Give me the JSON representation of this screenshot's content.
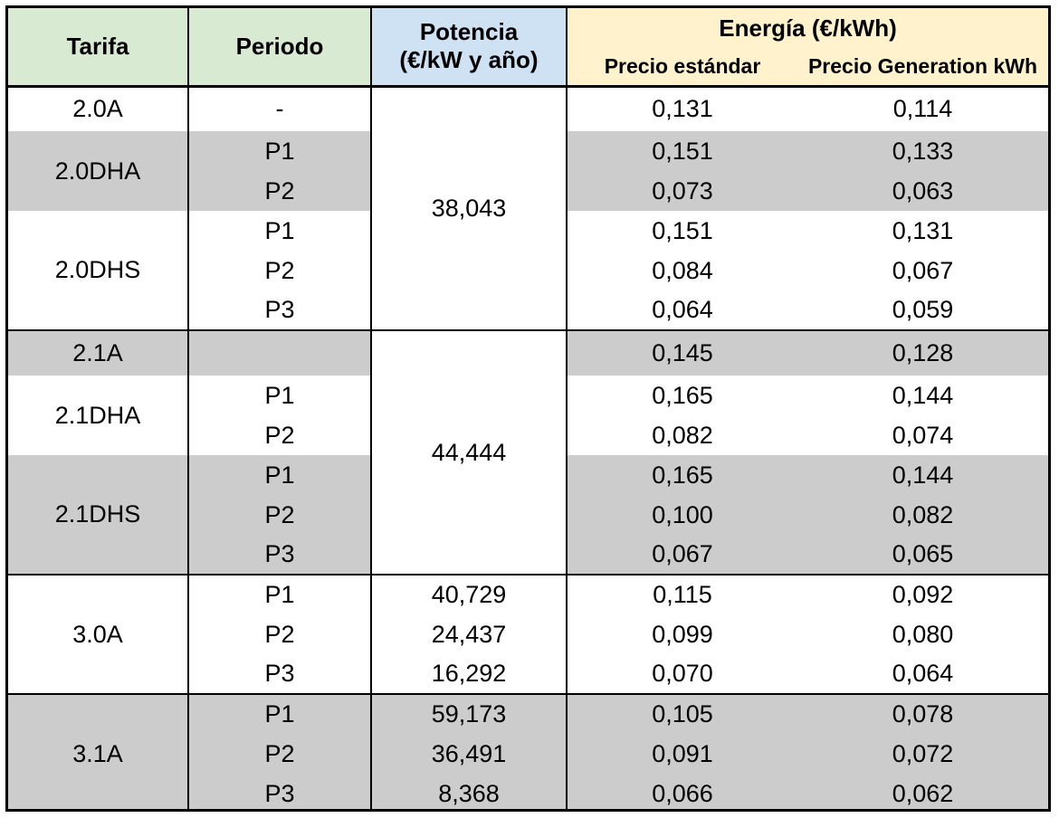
{
  "header": {
    "tarifa": "Tarifa",
    "periodo": "Periodo",
    "potencia_line1": "Potencia",
    "potencia_line2": "(€/kW y año)",
    "energia": "Energía (€/kWh)",
    "precio_estandar": "Precio estándar",
    "precio_generation": "Precio Generation kWh"
  },
  "rows": {
    "r2_0A": {
      "tarifa": "2.0A",
      "periodo": "-",
      "estandar": "0,131",
      "generation": "0,114"
    },
    "r2_0DHA": {
      "tarifa": "2.0DHA",
      "p1": {
        "periodo": "P1",
        "estandar": "0,151",
        "generation": "0,133"
      },
      "p2": {
        "periodo": "P2",
        "estandar": "0,073",
        "generation": "0,063"
      }
    },
    "r2_0DHS": {
      "tarifa": "2.0DHS",
      "p1": {
        "periodo": "P1",
        "estandar": "0,151",
        "generation": "0,131"
      },
      "p2": {
        "periodo": "P2",
        "estandar": "0,084",
        "generation": "0,067"
      },
      "p3": {
        "periodo": "P3",
        "estandar": "0,064",
        "generation": "0,059"
      }
    },
    "potencia_2_0": "38,043",
    "r2_1A": {
      "tarifa": "2.1A",
      "periodo": "",
      "estandar": "0,145",
      "generation": "0,128"
    },
    "r2_1DHA": {
      "tarifa": "2.1DHA",
      "p1": {
        "periodo": "P1",
        "estandar": "0,165",
        "generation": "0,144"
      },
      "p2": {
        "periodo": "P2",
        "estandar": "0,082",
        "generation": "0,074"
      }
    },
    "r2_1DHS": {
      "tarifa": "2.1DHS",
      "p1": {
        "periodo": "P1",
        "estandar": "0,165",
        "generation": "0,144"
      },
      "p2": {
        "periodo": "P2",
        "estandar": "0,100",
        "generation": "0,082"
      },
      "p3": {
        "periodo": "P3",
        "estandar": "0,067",
        "generation": "0,065"
      }
    },
    "potencia_2_1": "44,444",
    "r3_0A": {
      "tarifa": "3.0A",
      "p1": {
        "periodo": "P1",
        "potencia": "40,729",
        "estandar": "0,115",
        "generation": "0,092"
      },
      "p2": {
        "periodo": "P2",
        "potencia": "24,437",
        "estandar": "0,099",
        "generation": "0,080"
      },
      "p3": {
        "periodo": "P3",
        "potencia": "16,292",
        "estandar": "0,070",
        "generation": "0,064"
      }
    },
    "r3_1A": {
      "tarifa": "3.1A",
      "p1": {
        "periodo": "P1",
        "potencia": "59,173",
        "estandar": "0,105",
        "generation": "0,078"
      },
      "p2": {
        "periodo": "P2",
        "potencia": "36,491",
        "estandar": "0,091",
        "generation": "0,072"
      },
      "p3": {
        "periodo": "P3",
        "potencia": "8,368",
        "estandar": "0,066",
        "generation": "0,062"
      }
    }
  },
  "colors": {
    "header_green": "#d9ead3",
    "header_blue": "#cfe2f3",
    "header_yellow": "#fff2cc",
    "row_gray": "#cccccc"
  }
}
